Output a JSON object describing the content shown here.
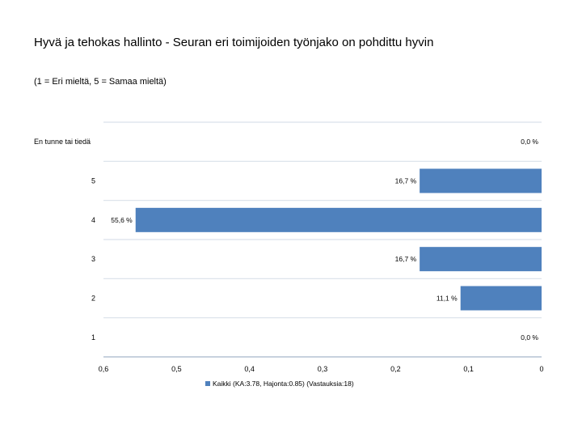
{
  "title": "Hyvä ja tehokas hallinto - Seuran eri toimijoiden työnjako on pohdittu hyvin",
  "subtitle": "(1 = Eri mieltä, 5 = Samaa mieltä)",
  "chart_data": {
    "type": "bar",
    "orientation": "horizontal",
    "x_reversed": true,
    "categories": [
      "En tunne tai tiedä",
      "5",
      "4",
      "3",
      "2",
      "1"
    ],
    "series": [
      {
        "name": "Kaikki (KA:3.78, Hajonta:0.85) (Vastauksia:18)",
        "values": [
          0.0,
          0.167,
          0.556,
          0.167,
          0.111,
          0.0
        ],
        "labels": [
          "0,0 %",
          "16,7 %",
          "55,6 %",
          "16,7 %",
          "11,1 %",
          "0,0 %"
        ],
        "color": "#4f81bd"
      }
    ],
    "xlim": [
      0,
      0.6
    ],
    "x_ticks": [
      0.6,
      0.5,
      0.4,
      0.3,
      0.2,
      0.1,
      0
    ],
    "x_tick_labels": [
      "0,6",
      "0,5",
      "0,4",
      "0,3",
      "0,2",
      "0,1",
      "0"
    ],
    "grid": true,
    "legend_position": "bottom"
  }
}
